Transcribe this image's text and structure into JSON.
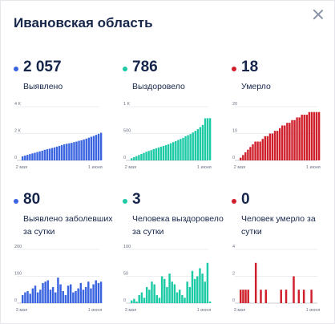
{
  "header": {
    "title": "Ивановская область",
    "close_icon": "close-icon"
  },
  "panels": [
    {
      "value": "2 057",
      "label": "Выявлено",
      "color": "#3a64e0"
    },
    {
      "value": "786",
      "label": "Выздоровело",
      "color": "#1ccaa6"
    },
    {
      "value": "18",
      "label": "Умерло",
      "color": "#cf1f2b"
    },
    {
      "value": "80",
      "label": "Выявлено заболевших за сутки",
      "color": "#3a64e0"
    },
    {
      "value": "3",
      "label": "Человека выздоровело за сутки",
      "color": "#1ccaa6"
    },
    {
      "value": "0",
      "label": "Человек умерло за сутки",
      "color": "#cf1f2b"
    }
  ],
  "chart_data": [
    {
      "type": "bar",
      "ylim": [
        0,
        4000
      ],
      "yticks": [
        {
          "v": 0,
          "t": "0"
        },
        {
          "v": 2000,
          "t": "2 К"
        },
        {
          "v": 4000,
          "t": "4 К"
        }
      ],
      "xticks": [
        {
          "i": 0,
          "t": "2 мая"
        },
        {
          "i": 30,
          "t": "1 июня"
        }
      ],
      "values": [
        300,
        360,
        410,
        470,
        520,
        570,
        620,
        670,
        720,
        790,
        830,
        870,
        920,
        970,
        1020,
        1080,
        1140,
        1200,
        1240,
        1270,
        1310,
        1360,
        1400,
        1460,
        1500,
        1560,
        1620,
        1690,
        1760,
        1820,
        1900,
        1977,
        2057
      ]
    },
    {
      "type": "bar",
      "ylim": [
        0,
        1000
      ],
      "yticks": [
        {
          "v": 0,
          "t": "0"
        },
        {
          "v": 500,
          "t": "500"
        },
        {
          "v": 1000,
          "t": "1 К"
        }
      ],
      "xticks": [
        {
          "i": 0,
          "t": "2 мая"
        },
        {
          "i": 30,
          "t": "1 июня"
        }
      ],
      "values": [
        40,
        60,
        80,
        100,
        120,
        140,
        160,
        175,
        190,
        210,
        225,
        240,
        255,
        270,
        285,
        300,
        320,
        340,
        360,
        380,
        400,
        420,
        450,
        470,
        490,
        520,
        550,
        580,
        620,
        660,
        783,
        786,
        786
      ]
    },
    {
      "type": "bar",
      "ylim": [
        0,
        20
      ],
      "yticks": [
        {
          "v": 0,
          "t": "0"
        },
        {
          "v": 10,
          "t": "10"
        },
        {
          "v": 20,
          "t": "20"
        }
      ],
      "xticks": [
        {
          "i": 0,
          "t": "2 мая"
        },
        {
          "i": 30,
          "t": "1 июня"
        }
      ],
      "values": [
        1,
        2,
        3,
        4,
        5,
        6,
        7,
        7,
        7,
        8,
        9,
        9,
        10,
        10,
        11,
        11,
        12,
        13,
        13,
        14,
        14,
        15,
        15,
        16,
        16,
        17,
        17,
        17,
        18,
        18,
        18,
        18,
        18
      ]
    },
    {
      "type": "bar",
      "ylim": [
        0,
        200
      ],
      "yticks": [
        {
          "v": 0,
          "t": "0"
        },
        {
          "v": 100,
          "t": "100"
        },
        {
          "v": 200,
          "t": "200"
        }
      ],
      "xticks": [
        {
          "i": 0,
          "t": "3 мая"
        },
        {
          "i": 29,
          "t": "1 июня"
        }
      ],
      "values": [
        30,
        40,
        45,
        35,
        55,
        65,
        40,
        50,
        75,
        80,
        85,
        50,
        60,
        40,
        95,
        70,
        45,
        30,
        65,
        70,
        40,
        45,
        55,
        75,
        50,
        60,
        80,
        55,
        70,
        85,
        75,
        80
      ]
    },
    {
      "type": "bar",
      "ylim": [
        0,
        100
      ],
      "yticks": [
        {
          "v": 0,
          "t": "0"
        },
        {
          "v": 50,
          "t": "50"
        },
        {
          "v": 100,
          "t": "100"
        }
      ],
      "xticks": [
        {
          "i": 0,
          "t": "3 мая"
        },
        {
          "i": 29,
          "t": "1 июня"
        }
      ],
      "values": [
        5,
        8,
        3,
        15,
        20,
        10,
        30,
        25,
        40,
        35,
        15,
        10,
        50,
        45,
        30,
        55,
        40,
        35,
        20,
        25,
        15,
        10,
        40,
        30,
        60,
        45,
        50,
        65,
        55,
        40,
        75,
        3
      ]
    },
    {
      "type": "bar",
      "ylim": [
        0,
        4
      ],
      "yticks": [
        {
          "v": 0,
          "t": "0"
        },
        {
          "v": 2,
          "t": "2"
        },
        {
          "v": 4,
          "t": "4"
        }
      ],
      "xticks": [
        {
          "i": 0,
          "t": "3 мая"
        },
        {
          "i": 29,
          "t": "1 июня"
        }
      ],
      "values": [
        1,
        1,
        1,
        1,
        0,
        0,
        3,
        0,
        1,
        0,
        1,
        0,
        0,
        0,
        0,
        0,
        1,
        0,
        1,
        0,
        0,
        2,
        0,
        1,
        0,
        1,
        0,
        0,
        1,
        0,
        0,
        0
      ]
    }
  ]
}
